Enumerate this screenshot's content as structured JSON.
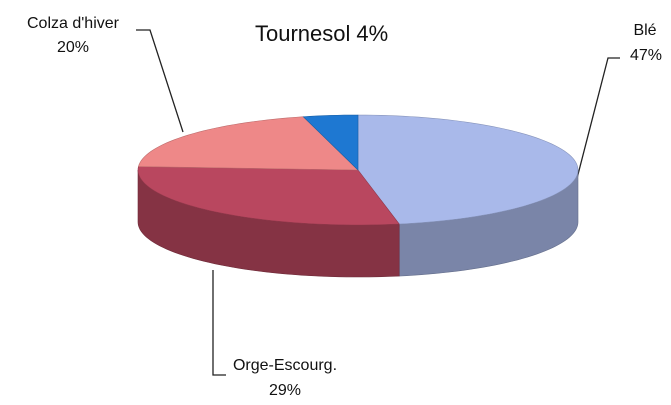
{
  "chart_data": {
    "type": "pie",
    "categories": [
      "Blé",
      "Orge-Escourg.",
      "Colza d'hiver",
      "Tournesol"
    ],
    "values": [
      47,
      29,
      20,
      4
    ],
    "value_labels": [
      "47%",
      "29%",
      "20%",
      "4%"
    ],
    "colors": [
      "#a9b9ea",
      "#b9475f",
      "#ee8888",
      "#1e78d2"
    ]
  }
}
